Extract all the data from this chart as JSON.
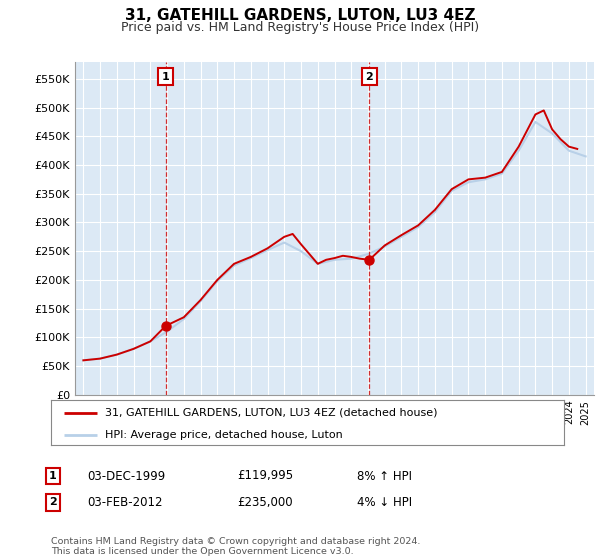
{
  "title": "31, GATEHILL GARDENS, LUTON, LU3 4EZ",
  "subtitle": "Price paid vs. HM Land Registry's House Price Index (HPI)",
  "title_fontsize": 11,
  "subtitle_fontsize": 9,
  "ylabel_ticks": [
    "£0",
    "£50K",
    "£100K",
    "£150K",
    "£200K",
    "£250K",
    "£300K",
    "£350K",
    "£400K",
    "£450K",
    "£500K",
    "£550K"
  ],
  "ytick_vals": [
    0,
    50000,
    100000,
    150000,
    200000,
    250000,
    300000,
    350000,
    400000,
    450000,
    500000,
    550000
  ],
  "ylim": [
    0,
    580000
  ],
  "xlim_start": 1994.5,
  "xlim_end": 2025.5,
  "hpi_color": "#b8d0e8",
  "price_color": "#cc0000",
  "marker1_year": 1999.92,
  "marker1_value": 119995,
  "marker2_year": 2012.08,
  "marker2_value": 235000,
  "legend_line1": "31, GATEHILL GARDENS, LUTON, LU3 4EZ (detached house)",
  "legend_line2": "HPI: Average price, detached house, Luton",
  "table_rows": [
    {
      "num": "1",
      "date": "03-DEC-1999",
      "price": "£119,995",
      "hpi": "8% ↑ HPI"
    },
    {
      "num": "2",
      "date": "03-FEB-2012",
      "price": "£235,000",
      "hpi": "4% ↓ HPI"
    }
  ],
  "footer": "Contains HM Land Registry data © Crown copyright and database right 2024.\nThis data is licensed under the Open Government Licence v3.0.",
  "bg_color": "#ffffff",
  "plot_bg_color": "#dce9f5",
  "grid_color": "#ffffff"
}
